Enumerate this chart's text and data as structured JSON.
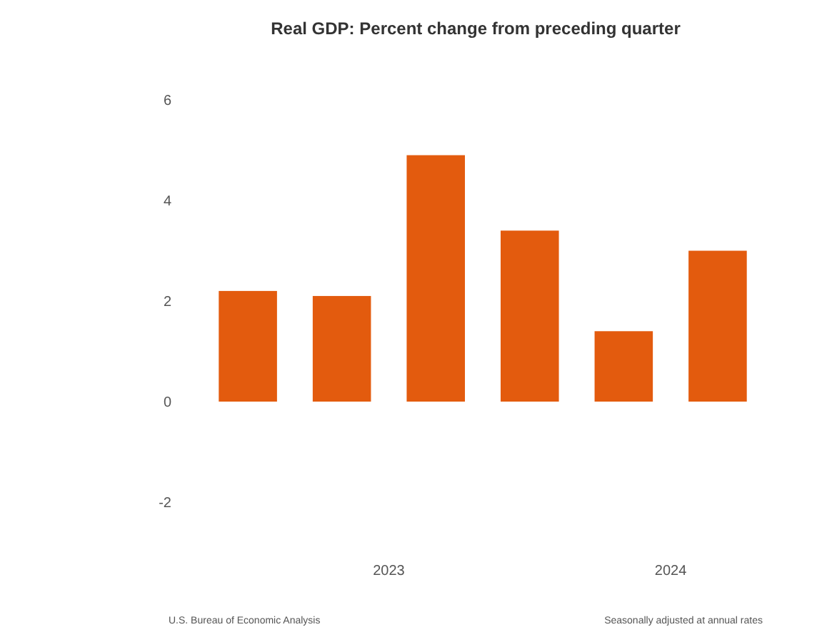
{
  "chart_data": {
    "type": "bar",
    "title": "Real GDP:  Percent change from preceding quarter",
    "categories": [
      null,
      null,
      null,
      null,
      null,
      null
    ],
    "values": [
      2.2,
      2.1,
      4.9,
      3.4,
      1.4,
      3.0
    ],
    "color": "#e35b0e",
    "ylim": [
      -2,
      6
    ],
    "yticks": [
      -2,
      0,
      2,
      4,
      6
    ],
    "annotations": [
      "2023",
      "2024",
      "U.S. Bureau of Economic Analysis",
      "Seasonally adjusted at annual rates"
    ]
  }
}
